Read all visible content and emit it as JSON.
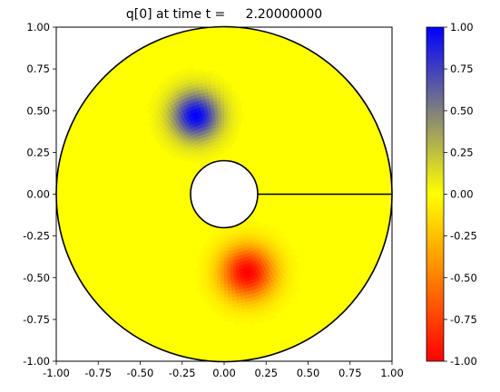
{
  "chart_data": {
    "type": "heatmap",
    "title": "q[0] at time t =     2.20000000",
    "xlabel": "",
    "ylabel": "",
    "xlim": [
      -1.0,
      1.0
    ],
    "ylim": [
      -1.0,
      1.0
    ],
    "x_ticks": [
      "-1.00",
      "-0.75",
      "-0.50",
      "-0.25",
      "0.00",
      "0.25",
      "0.50",
      "0.75",
      "1.00"
    ],
    "y_ticks": [
      "1.00",
      "0.75",
      "0.50",
      "0.25",
      "0.00",
      "-0.25",
      "-0.50",
      "-0.75",
      "-1.00"
    ],
    "x_tick_values": [
      -1.0,
      -0.75,
      -0.5,
      -0.25,
      0.0,
      0.25,
      0.5,
      0.75,
      1.0
    ],
    "y_tick_values": [
      1.0,
      0.75,
      0.5,
      0.25,
      0.0,
      -0.25,
      -0.5,
      -0.75,
      -1.0
    ],
    "domain": {
      "outer_radius": 1.0,
      "inner_radius": 0.2,
      "cut_line_from": [
        0.2,
        0.0
      ],
      "cut_line_to": [
        1.0,
        0.0
      ]
    },
    "background_value": 0.0,
    "blobs": [
      {
        "center_x": -0.17,
        "center_y": 0.47,
        "peak_value": 1.0,
        "sigma": 0.1
      },
      {
        "center_x": 0.14,
        "center_y": -0.47,
        "peak_value": -1.0,
        "sigma": 0.11
      }
    ],
    "colorbar": {
      "range": [
        -1.0,
        1.0
      ],
      "colors": {
        "min": "#ff0000",
        "mid": "#ffff00",
        "max": "#0000ff"
      },
      "ticks": [
        "1.00",
        "0.75",
        "0.50",
        "0.25",
        "0.00",
        "-0.25",
        "-0.50",
        "-0.75",
        "-1.00"
      ],
      "tick_values": [
        1.0,
        0.75,
        0.5,
        0.25,
        0.0,
        -0.25,
        -0.5,
        -0.75,
        -1.0
      ]
    }
  }
}
